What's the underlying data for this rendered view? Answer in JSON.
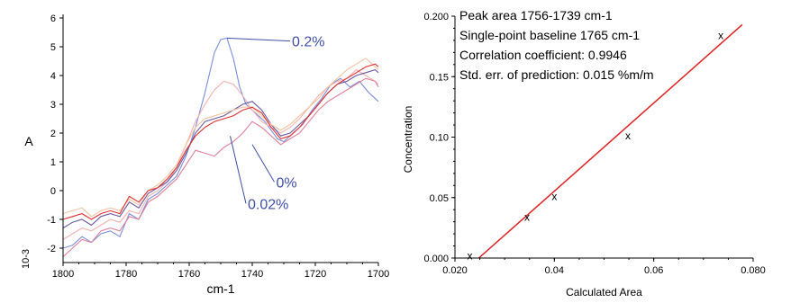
{
  "colors": {
    "series_pink": "#e0809a",
    "series_blue": "#7a8fdc",
    "series_lightpink": "#f4b0b0",
    "series_purple": "#6b5a9e",
    "series_orange": "#f2c4a0",
    "series_red": "#e03030",
    "annotation": "#3f4fa8",
    "regression_line": "#e02020"
  },
  "chart_data": [
    {
      "type": "line",
      "xlabel": "cm-1",
      "ylabel": "A",
      "y_multiplier_label": "10-3",
      "xlim": [
        1800,
        1700
      ],
      "ylim": [
        -2.5,
        6
      ],
      "x_reversed": true,
      "x_ticks": [
        1800,
        1780,
        1760,
        1740,
        1720,
        1700
      ],
      "y_ticks": [
        -2,
        -1,
        0,
        1,
        2,
        3,
        4,
        5,
        6
      ],
      "annotations": [
        {
          "text": "0.2%",
          "x": 1728,
          "y": 5.2,
          "points_to": [
            1748,
            5.3
          ]
        },
        {
          "text": "0%",
          "x": 1733,
          "y": 0.3,
          "points_to": [
            1740,
            1.6
          ]
        },
        {
          "text": "0.02%",
          "x": 1742,
          "y": -0.45,
          "points_to": [
            1747,
            1.9
          ]
        }
      ],
      "series": [
        {
          "color": "series_blue",
          "x": [
            1800,
            1797,
            1794,
            1791,
            1788,
            1785,
            1782,
            1779,
            1776,
            1773,
            1770,
            1767,
            1764,
            1761,
            1758,
            1755,
            1752,
            1750,
            1748,
            1746,
            1744,
            1742,
            1740,
            1738,
            1736,
            1734,
            1732,
            1730,
            1727,
            1724,
            1721,
            1718,
            1715,
            1712,
            1709,
            1706,
            1703,
            1700
          ],
          "y": [
            -2.0,
            -1.9,
            -1.6,
            -1.8,
            -1.5,
            -1.4,
            -1.6,
            -0.8,
            -1.0,
            -0.3,
            -0.1,
            0.2,
            0.5,
            1.2,
            2.2,
            3.4,
            4.8,
            5.25,
            5.3,
            4.6,
            3.6,
            3.0,
            2.8,
            2.6,
            2.4,
            2.1,
            1.8,
            1.7,
            2.0,
            2.3,
            2.8,
            3.2,
            3.7,
            3.9,
            3.6,
            3.8,
            3.4,
            3.1
          ]
        },
        {
          "color": "series_lightpink",
          "x": [
            1800,
            1797,
            1794,
            1791,
            1788,
            1785,
            1782,
            1779,
            1776,
            1773,
            1770,
            1767,
            1764,
            1761,
            1758,
            1755,
            1752,
            1749,
            1746,
            1743,
            1740,
            1737,
            1734,
            1731,
            1728,
            1725,
            1722,
            1719,
            1716,
            1713,
            1710,
            1707,
            1704,
            1701,
            1700
          ],
          "y": [
            -1.7,
            -1.5,
            -1.3,
            -1.4,
            -1.2,
            -1.0,
            -1.1,
            -0.7,
            -0.8,
            -0.2,
            0.0,
            0.3,
            0.8,
            1.6,
            2.4,
            3.0,
            3.5,
            3.8,
            3.7,
            3.3,
            2.8,
            2.4,
            2.2,
            2.0,
            2.2,
            2.5,
            2.9,
            3.3,
            3.6,
            3.8,
            3.9,
            4.2,
            4.0,
            3.8,
            3.7
          ]
        },
        {
          "color": "series_purple",
          "x": [
            1800,
            1797,
            1794,
            1791,
            1788,
            1785,
            1782,
            1779,
            1776,
            1773,
            1770,
            1767,
            1764,
            1761,
            1758,
            1755,
            1752,
            1749,
            1746,
            1743,
            1740,
            1737,
            1734,
            1731,
            1728,
            1725,
            1722,
            1719,
            1716,
            1713,
            1710,
            1707,
            1704,
            1701,
            1700
          ],
          "y": [
            -1.3,
            -1.1,
            -1.0,
            -1.2,
            -0.9,
            -0.8,
            -0.9,
            -0.4,
            -0.6,
            -0.1,
            0.1,
            0.3,
            0.7,
            1.3,
            2.0,
            2.4,
            2.5,
            2.6,
            2.8,
            3.0,
            3.1,
            2.8,
            2.3,
            1.9,
            2.0,
            2.3,
            2.6,
            3.0,
            3.4,
            3.7,
            3.8,
            4.0,
            4.1,
            4.2,
            4.1
          ]
        },
        {
          "color": "series_pink",
          "x": [
            1800,
            1797,
            1794,
            1791,
            1788,
            1785,
            1782,
            1779,
            1776,
            1773,
            1770,
            1767,
            1764,
            1761,
            1758,
            1755,
            1752,
            1749,
            1746,
            1743,
            1740,
            1737,
            1734,
            1731,
            1728,
            1725,
            1722,
            1719,
            1716,
            1713,
            1710,
            1707,
            1704,
            1701,
            1700
          ],
          "y": [
            -2.3,
            -2.0,
            -1.7,
            -1.8,
            -1.4,
            -1.3,
            -1.4,
            -0.9,
            -1.0,
            -0.4,
            -0.2,
            0.1,
            0.4,
            0.9,
            1.4,
            1.3,
            1.2,
            1.5,
            1.7,
            2.0,
            2.4,
            2.2,
            1.9,
            1.6,
            1.8,
            2.0,
            2.4,
            2.8,
            3.1,
            3.3,
            3.5,
            3.7,
            3.9,
            3.8,
            3.6
          ]
        },
        {
          "color": "series_orange",
          "x": [
            1800,
            1797,
            1794,
            1791,
            1788,
            1785,
            1782,
            1779,
            1776,
            1773,
            1770,
            1767,
            1764,
            1761,
            1758,
            1755,
            1752,
            1749,
            1746,
            1743,
            1740,
            1737,
            1734,
            1731,
            1728,
            1725,
            1722,
            1719,
            1716,
            1713,
            1710,
            1707,
            1704,
            1701,
            1700
          ],
          "y": [
            -0.8,
            -0.7,
            -0.6,
            -0.9,
            -0.7,
            -0.6,
            -0.7,
            -0.3,
            -0.5,
            0.0,
            0.2,
            0.5,
            0.9,
            1.6,
            2.2,
            2.5,
            2.6,
            2.7,
            2.8,
            2.9,
            2.9,
            2.6,
            2.3,
            2.1,
            2.3,
            2.6,
            2.9,
            3.2,
            3.6,
            3.9,
            4.2,
            4.4,
            4.6,
            4.3,
            4.2
          ]
        },
        {
          "color": "series_red",
          "x": [
            1800,
            1797,
            1794,
            1791,
            1788,
            1785,
            1782,
            1779,
            1776,
            1773,
            1770,
            1767,
            1764,
            1761,
            1758,
            1755,
            1752,
            1749,
            1746,
            1743,
            1740,
            1737,
            1734,
            1731,
            1728,
            1725,
            1722,
            1719,
            1716,
            1713,
            1710,
            1707,
            1704,
            1701,
            1700
          ],
          "y": [
            -1.0,
            -0.9,
            -0.8,
            -1.0,
            -0.8,
            -0.7,
            -0.8,
            -0.2,
            -0.4,
            0.0,
            0.1,
            0.4,
            0.8,
            1.4,
            1.9,
            2.2,
            2.4,
            2.5,
            2.6,
            2.8,
            2.9,
            2.7,
            2.2,
            1.8,
            1.9,
            2.2,
            2.6,
            3.0,
            3.4,
            3.7,
            3.9,
            4.1,
            4.3,
            4.4,
            4.3
          ]
        }
      ]
    },
    {
      "type": "scatter",
      "xlabel": "Calculated Area",
      "ylabel": "Concentration",
      "xlim": [
        0.02,
        0.08
      ],
      "ylim": [
        0,
        0.2
      ],
      "x_ticks": [
        0.02,
        0.04,
        0.06,
        0.08
      ],
      "x_tick_labels": [
        "0.020",
        "0.04",
        "0.06",
        "0.080"
      ],
      "y_ticks": [
        0.0,
        0.05,
        0.1,
        0.15,
        0.2
      ],
      "y_tick_labels": [
        "0.000",
        "0.05",
        "0.10",
        "0.15",
        "0.200"
      ],
      "info_lines": [
        "Peak area 1756-1739 cm-1",
        "Single-point baseline 1765 cm-1",
        "Correlation coefficient: 0.9946",
        "Std. err. of prediction: 0.015 %m/m"
      ],
      "points": [
        {
          "x": 0.023,
          "y": 0.002,
          "label": "x"
        },
        {
          "x": 0.0345,
          "y": 0.034,
          "label": "x"
        },
        {
          "x": 0.04,
          "y": 0.051,
          "label": "x"
        },
        {
          "x": 0.0548,
          "y": 0.101,
          "label": "x"
        },
        {
          "x": 0.0735,
          "y": 0.184,
          "label": "x"
        }
      ],
      "regression_line": {
        "x": [
          0.0248,
          0.0778
        ],
        "y": [
          0.0,
          0.193
        ]
      }
    }
  ]
}
